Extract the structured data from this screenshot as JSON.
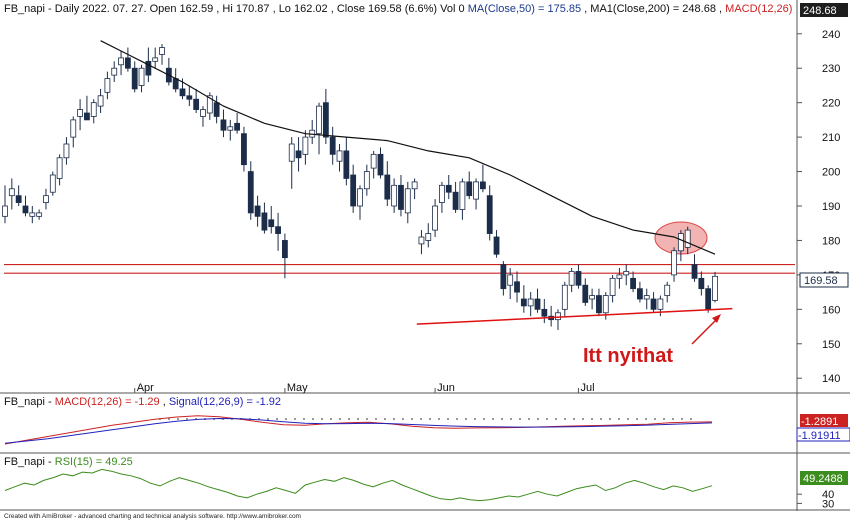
{
  "header": {
    "symbol": "FB_napi",
    "interval": "Daily",
    "date": "2022. 07. 27.",
    "open": "Open 162.59",
    "high": "Hi 170.87",
    "low": "Lo 162.02",
    "close": "Close 169.58 (6.6%)",
    "vol": "Vol 0",
    "ma50": "MA(Close,50) = 175.85",
    "ma200": "MA1(Close,200) = 248.68",
    "macd": "MACD(12,26)"
  },
  "price_badges": {
    "ma200": "248.68",
    "close": "169.58"
  },
  "macd_panel": {
    "label": "FB_napi",
    "macd": "MACD(12,26) = -1.29",
    "signal": "Signal(12,26,9) = -1.92",
    "badge_macd": "-1.2891",
    "badge_signal": "-1.91911"
  },
  "rsi_panel": {
    "label": "FB_napi",
    "rsi": "RSI(15) = 49.25",
    "badge": "49.2488"
  },
  "annotation": "Itt nyithat",
  "footer": "Created with AmiBroker - advanced charting and technical analysis software. http://www.amibroker.com",
  "colors": {
    "up_candle": "#ffffff",
    "down_candle": "#1c2d4a",
    "ma_line": "#111111",
    "level_lines": "#cc2222",
    "trend_line": "#e01010",
    "highlight_ellipse": "#f2b3b3",
    "macd_line": "#cc2222",
    "signal_line": "#2222bb",
    "rsi_line": "#3c8c1e"
  },
  "chart_data": {
    "type": "candlestick",
    "price_axis": {
      "ticks": [
        140,
        150,
        160,
        170,
        180,
        190,
        200,
        210,
        220,
        230,
        240
      ],
      "ylim": [
        136,
        244
      ]
    },
    "x_labels": [
      "Apr",
      "May",
      "Jun",
      "Jul"
    ],
    "horizontal_levels": [
      170.5,
      173.0
    ],
    "trend_line": {
      "from": {
        "x": 0.58,
        "y": 155.7
      },
      "to": {
        "x": 0.94,
        "y": 160.2
      }
    },
    "candles": [
      {
        "o": 187,
        "h": 196,
        "l": 185,
        "c": 190
      },
      {
        "o": 193,
        "h": 198,
        "l": 189,
        "c": 195
      },
      {
        "o": 193,
        "h": 196,
        "l": 190,
        "c": 191
      },
      {
        "o": 190,
        "h": 193,
        "l": 187,
        "c": 188
      },
      {
        "o": 187,
        "h": 190,
        "l": 185,
        "c": 188
      },
      {
        "o": 187,
        "h": 189,
        "l": 186,
        "c": 188
      },
      {
        "o": 191,
        "h": 195,
        "l": 189,
        "c": 193
      },
      {
        "o": 194,
        "h": 200,
        "l": 193,
        "c": 199
      },
      {
        "o": 198,
        "h": 205,
        "l": 196,
        "c": 204
      },
      {
        "o": 204,
        "h": 210,
        "l": 202,
        "c": 208
      },
      {
        "o": 210,
        "h": 216,
        "l": 207,
        "c": 215
      },
      {
        "o": 216,
        "h": 221,
        "l": 212,
        "c": 218
      },
      {
        "o": 217,
        "h": 222,
        "l": 215,
        "c": 215
      },
      {
        "o": 216,
        "h": 221,
        "l": 214,
        "c": 220
      },
      {
        "o": 219,
        "h": 224,
        "l": 217,
        "c": 222
      },
      {
        "o": 223,
        "h": 229,
        "l": 221,
        "c": 227
      },
      {
        "o": 228,
        "h": 232,
        "l": 226,
        "c": 230
      },
      {
        "o": 231,
        "h": 235,
        "l": 228,
        "c": 233
      },
      {
        "o": 233,
        "h": 236,
        "l": 229,
        "c": 230
      },
      {
        "o": 230,
        "h": 232,
        "l": 223,
        "c": 224
      },
      {
        "o": 225,
        "h": 231,
        "l": 223,
        "c": 230
      },
      {
        "o": 232,
        "h": 236,
        "l": 226,
        "c": 228
      },
      {
        "o": 232,
        "h": 236,
        "l": 230,
        "c": 233
      },
      {
        "o": 234,
        "h": 237,
        "l": 231,
        "c": 236
      },
      {
        "o": 230,
        "h": 233,
        "l": 225,
        "c": 226
      },
      {
        "o": 227,
        "h": 230,
        "l": 223,
        "c": 224
      },
      {
        "o": 224,
        "h": 227,
        "l": 221,
        "c": 222
      },
      {
        "o": 222,
        "h": 225,
        "l": 219,
        "c": 221
      },
      {
        "o": 221,
        "h": 224,
        "l": 217,
        "c": 218
      },
      {
        "o": 216,
        "h": 219,
        "l": 213,
        "c": 218
      },
      {
        "o": 217,
        "h": 223,
        "l": 215,
        "c": 222
      },
      {
        "o": 220,
        "h": 222,
        "l": 214,
        "c": 216
      },
      {
        "o": 215,
        "h": 218,
        "l": 210,
        "c": 212
      },
      {
        "o": 212,
        "h": 215,
        "l": 209,
        "c": 213
      },
      {
        "o": 214,
        "h": 217,
        "l": 211,
        "c": 212
      },
      {
        "o": 211,
        "h": 213,
        "l": 200,
        "c": 202
      },
      {
        "o": 200,
        "h": 203,
        "l": 186,
        "c": 188
      },
      {
        "o": 190,
        "h": 193,
        "l": 184,
        "c": 187
      },
      {
        "o": 188,
        "h": 191,
        "l": 182,
        "c": 183
      },
      {
        "o": 186,
        "h": 190,
        "l": 182,
        "c": 184
      },
      {
        "o": 184,
        "h": 188,
        "l": 177,
        "c": 182
      },
      {
        "o": 180,
        "h": 182,
        "l": 169,
        "c": 175
      },
      {
        "o": 203,
        "h": 210,
        "l": 195,
        "c": 208
      },
      {
        "o": 206,
        "h": 210,
        "l": 200,
        "c": 204
      },
      {
        "o": 205,
        "h": 212,
        "l": 202,
        "c": 210
      },
      {
        "o": 210,
        "h": 215,
        "l": 208,
        "c": 212
      },
      {
        "o": 211,
        "h": 220,
        "l": 205,
        "c": 219
      },
      {
        "o": 220,
        "h": 224,
        "l": 208,
        "c": 210
      },
      {
        "o": 210,
        "h": 213,
        "l": 202,
        "c": 205
      },
      {
        "o": 203,
        "h": 208,
        "l": 200,
        "c": 206
      },
      {
        "o": 206,
        "h": 210,
        "l": 196,
        "c": 198
      },
      {
        "o": 199,
        "h": 202,
        "l": 188,
        "c": 190
      },
      {
        "o": 190,
        "h": 196,
        "l": 186,
        "c": 195
      },
      {
        "o": 195,
        "h": 202,
        "l": 193,
        "c": 200
      },
      {
        "o": 201,
        "h": 206,
        "l": 198,
        "c": 205
      },
      {
        "o": 205,
        "h": 207,
        "l": 198,
        "c": 199
      },
      {
        "o": 199,
        "h": 203,
        "l": 190,
        "c": 192
      },
      {
        "o": 190,
        "h": 198,
        "l": 188,
        "c": 196
      },
      {
        "o": 196,
        "h": 199,
        "l": 187,
        "c": 189
      },
      {
        "o": 188,
        "h": 197,
        "l": 185,
        "c": 195
      },
      {
        "o": 195,
        "h": 198,
        "l": 192,
        "c": 197
      },
      {
        "o": 179,
        "h": 183,
        "l": 176,
        "c": 181
      },
      {
        "o": 180,
        "h": 185,
        "l": 178,
        "c": 182
      },
      {
        "o": 183,
        "h": 192,
        "l": 181,
        "c": 190
      },
      {
        "o": 191,
        "h": 197,
        "l": 188,
        "c": 196
      },
      {
        "o": 196,
        "h": 199,
        "l": 192,
        "c": 194
      },
      {
        "o": 194,
        "h": 197,
        "l": 188,
        "c": 189
      },
      {
        "o": 189,
        "h": 198,
        "l": 186,
        "c": 197
      },
      {
        "o": 197,
        "h": 200,
        "l": 192,
        "c": 193
      },
      {
        "o": 192,
        "h": 198,
        "l": 189,
        "c": 197
      },
      {
        "o": 197,
        "h": 202,
        "l": 194,
        "c": 195
      },
      {
        "o": 193,
        "h": 196,
        "l": 180,
        "c": 182
      },
      {
        "o": 181,
        "h": 183,
        "l": 175,
        "c": 176
      },
      {
        "o": 173,
        "h": 174,
        "l": 164,
        "c": 166
      },
      {
        "o": 167,
        "h": 172,
        "l": 163,
        "c": 170
      },
      {
        "o": 168,
        "h": 171,
        "l": 162,
        "c": 165
      },
      {
        "o": 163,
        "h": 167,
        "l": 159,
        "c": 161
      },
      {
        "o": 161,
        "h": 165,
        "l": 158,
        "c": 163
      },
      {
        "o": 163,
        "h": 166,
        "l": 159,
        "c": 160
      },
      {
        "o": 160,
        "h": 163,
        "l": 156,
        "c": 158
      },
      {
        "o": 158,
        "h": 161,
        "l": 155,
        "c": 157
      },
      {
        "o": 157,
        "h": 160,
        "l": 154,
        "c": 159
      },
      {
        "o": 160,
        "h": 168,
        "l": 158,
        "c": 167
      },
      {
        "o": 167,
        "h": 172,
        "l": 165,
        "c": 171
      },
      {
        "o": 171,
        "h": 173,
        "l": 166,
        "c": 167
      },
      {
        "o": 167,
        "h": 169,
        "l": 161,
        "c": 162
      },
      {
        "o": 163,
        "h": 166,
        "l": 160,
        "c": 164
      },
      {
        "o": 164,
        "h": 166,
        "l": 158,
        "c": 159
      },
      {
        "o": 159,
        "h": 165,
        "l": 157,
        "c": 164
      },
      {
        "o": 164,
        "h": 170,
        "l": 162,
        "c": 169
      },
      {
        "o": 169,
        "h": 172,
        "l": 166,
        "c": 170
      },
      {
        "o": 170,
        "h": 173,
        "l": 167,
        "c": 171
      },
      {
        "o": 169,
        "h": 171,
        "l": 165,
        "c": 166
      },
      {
        "o": 166,
        "h": 168,
        "l": 162,
        "c": 163
      },
      {
        "o": 163,
        "h": 166,
        "l": 160,
        "c": 164
      },
      {
        "o": 163,
        "h": 165,
        "l": 159,
        "c": 160
      },
      {
        "o": 160,
        "h": 164,
        "l": 158,
        "c": 163
      },
      {
        "o": 164,
        "h": 168,
        "l": 162,
        "c": 167
      },
      {
        "o": 170,
        "h": 178,
        "l": 168,
        "c": 177
      },
      {
        "o": 177,
        "h": 183,
        "l": 174,
        "c": 182
      },
      {
        "o": 178,
        "h": 184,
        "l": 176,
        "c": 183
      },
      {
        "o": 173,
        "h": 176,
        "l": 168,
        "c": 169
      },
      {
        "o": 169,
        "h": 171,
        "l": 164,
        "c": 166
      },
      {
        "o": 166,
        "h": 167,
        "l": 159,
        "c": 160
      },
      {
        "o": 162.59,
        "h": 170.87,
        "l": 162.02,
        "c": 169.58
      }
    ],
    "ma50": [
      {
        "i": 14,
        "v": 238
      },
      {
        "i": 20,
        "v": 232
      },
      {
        "i": 26,
        "v": 226
      },
      {
        "i": 32,
        "v": 219
      },
      {
        "i": 38,
        "v": 214
      },
      {
        "i": 44,
        "v": 211
      },
      {
        "i": 50,
        "v": 210
      },
      {
        "i": 56,
        "v": 209
      },
      {
        "i": 62,
        "v": 206
      },
      {
        "i": 68,
        "v": 204
      },
      {
        "i": 74,
        "v": 199
      },
      {
        "i": 80,
        "v": 193
      },
      {
        "i": 86,
        "v": 187
      },
      {
        "i": 92,
        "v": 183
      },
      {
        "i": 98,
        "v": 181
      },
      {
        "i": 104,
        "v": 176
      }
    ],
    "macd": {
      "ylim": [
        -20,
        8
      ],
      "macd_line": [
        -16,
        -13.5,
        -11,
        -8.5,
        -6,
        -3.5,
        -1.5,
        0.5,
        2,
        2.8,
        2.2,
        0.5,
        -1.5,
        -3.2,
        -3.5,
        -2.5,
        -1.8,
        -1.5,
        -2.6,
        -4.2,
        -5.2,
        -5.5,
        -5.3,
        -5.2,
        -5.0,
        -4.6,
        -4.2,
        -3.8,
        -3.6,
        -3.2,
        -2.8,
        -1.8,
        -1.4,
        -1.29
      ],
      "signal_line": [
        -15.5,
        -14,
        -12.5,
        -10.5,
        -8.5,
        -6.5,
        -4.5,
        -2.5,
        -0.8,
        0.4,
        1.0,
        0.8,
        0,
        -1.2,
        -2.2,
        -2.5,
        -2.4,
        -2.2,
        -2.4,
        -3.0,
        -3.6,
        -4.1,
        -4.4,
        -4.6,
        -4.7,
        -4.7,
        -4.6,
        -4.4,
        -4.1,
        -3.8,
        -3.4,
        -2.9,
        -2.4,
        -1.92
      ],
      "histogram_note": "small bars near zero"
    },
    "rsi": {
      "ticks": [
        30,
        40
      ],
      "ylim": [
        25,
        75
      ],
      "values": [
        44,
        48,
        52,
        50,
        55,
        58,
        62,
        60,
        64,
        63,
        67,
        65,
        62,
        60,
        57,
        52,
        49,
        54,
        58,
        55,
        52,
        48,
        45,
        42,
        38,
        36,
        40,
        43,
        47,
        44,
        41,
        50,
        53,
        56,
        54,
        58,
        55,
        51,
        48,
        52,
        55,
        50,
        46,
        42,
        38,
        35,
        34,
        36,
        34,
        33,
        34,
        36,
        38,
        37,
        40,
        43,
        40,
        38,
        42,
        46,
        48,
        50,
        44,
        47,
        52,
        55,
        52,
        48,
        45,
        49,
        47,
        43,
        46,
        49.25
      ]
    }
  }
}
